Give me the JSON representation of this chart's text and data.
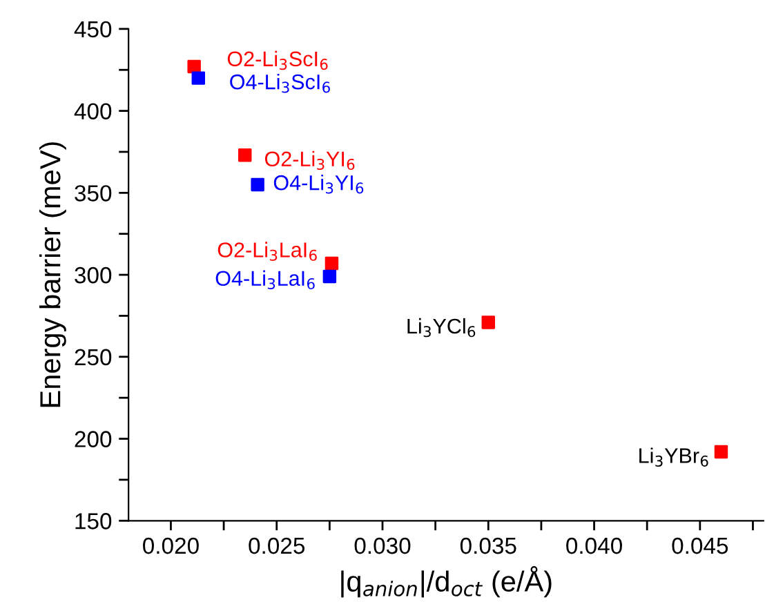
{
  "chart_data": {
    "type": "scatter",
    "xlabel": "|q$_{anion}$|/d$_{oct}$ (e/Å)",
    "ylabel": "Energy barrier (meV)",
    "xlim": [
      0.018,
      0.048
    ],
    "xticks": [
      {
        "value": 0.02,
        "label": "0.020"
      },
      {
        "value": 0.0225,
        "label": null
      },
      {
        "value": 0.025,
        "label": "0.025"
      },
      {
        "value": 0.0275,
        "label": null
      },
      {
        "value": 0.03,
        "label": "0.030"
      },
      {
        "value": 0.0325,
        "label": null
      },
      {
        "value": 0.035,
        "label": "0.035"
      },
      {
        "value": 0.0375,
        "label": null
      },
      {
        "value": 0.04,
        "label": "0.040"
      },
      {
        "value": 0.0425,
        "label": null
      },
      {
        "value": 0.045,
        "label": "0.045"
      },
      {
        "value": 0.0475,
        "label": null
      }
    ],
    "ylim": [
      150,
      450
    ],
    "yticks": [
      150,
      {
        "value": 175,
        "label": null
      },
      200,
      {
        "value": 225,
        "label": null
      },
      250,
      {
        "value": 275,
        "label": null
      },
      300,
      {
        "value": 325,
        "label": null
      },
      350,
      {
        "value": 375,
        "label": null
      },
      400,
      {
        "value": 425,
        "label": null
      },
      450
    ],
    "marker": "square",
    "grid": false,
    "legend": false,
    "series": [
      {
        "color": "#ff0000",
        "x": [
          0.0211,
          0.0235,
          0.0276,
          0.035,
          0.046
        ],
        "values": [
          427,
          373,
          307,
          271,
          192
        ]
      },
      {
        "color": "#0000ff",
        "x": [
          0.0213,
          0.0241,
          0.0275
        ],
        "values": [
          420,
          355,
          299
        ]
      }
    ],
    "annotations": [
      {
        "text": "O2-Li$_{3}$ScI$_{6}$",
        "x": 0.0211,
        "y": 427
      },
      {
        "text": "O4-Li$_{3}$ScI$_{6}$",
        "x": 0.0213,
        "y": 420
      },
      {
        "text": "O2-Li$_{3}$YI$_{6}$",
        "x": 0.0235,
        "y": 373
      },
      {
        "text": "O4-Li$_{3}$YI$_{6}$",
        "x": 0.0241,
        "y": 355
      },
      {
        "text": "O2-Li$_{3}$LaI$_{6}$",
        "x": 0.0276,
        "y": 307
      },
      {
        "text": "O4-Li$_{3}$LaI$_{6}$",
        "x": 0.0275,
        "y": 299
      },
      {
        "text": "Li$_{3}$YCl$_{6}$",
        "x": 0.035,
        "y": 271
      },
      {
        "text": "Li$_{3}$YBr$_{6}$",
        "x": 0.046,
        "y": 192
      }
    ]
  }
}
